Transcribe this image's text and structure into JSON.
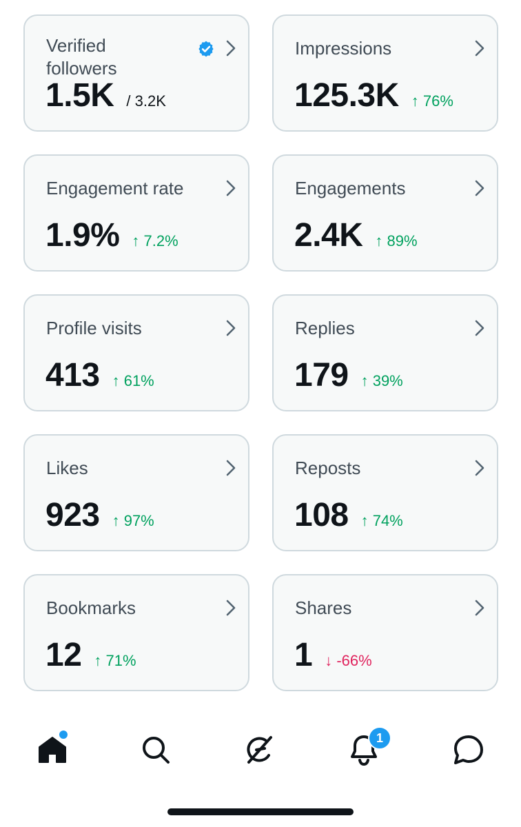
{
  "colors": {
    "card_bg": "#f7f9f9",
    "card_border": "#cfd9de",
    "positive": "#00a15e",
    "negative": "#e0245e",
    "accent": "#1d9bf0",
    "text": "#0f1419",
    "label": "#404b55"
  },
  "cards": [
    {
      "label": "Verified\nfollowers",
      "value": "1.5K",
      "sub": "/ 3.2K",
      "verified_icon": "verified-badge-icon"
    },
    {
      "label": "Impressions",
      "value": "125.3K",
      "change": "↑ 76%",
      "direction": "up"
    },
    {
      "label": "Engagement rate",
      "value": "1.9%",
      "change": "↑ 7.2%",
      "direction": "up"
    },
    {
      "label": "Engagements",
      "value": "2.4K",
      "change": "↑ 89%",
      "direction": "up"
    },
    {
      "label": "Profile visits",
      "value": "413",
      "change": "↑ 61%",
      "direction": "up"
    },
    {
      "label": "Replies",
      "value": "179",
      "change": "↑ 39%",
      "direction": "up"
    },
    {
      "label": "Likes",
      "value": "923",
      "change": "↑ 97%",
      "direction": "up"
    },
    {
      "label": "Reposts",
      "value": "108",
      "change": "↑ 74%",
      "direction": "up"
    },
    {
      "label": "Bookmarks",
      "value": "12",
      "change": "↑ 71%",
      "direction": "up"
    },
    {
      "label": "Shares",
      "value": "1",
      "change": "↓ -66%",
      "direction": "down"
    }
  ],
  "tabbar": {
    "items": [
      {
        "icon": "home-icon",
        "active": true,
        "has_dot": true
      },
      {
        "icon": "search-icon"
      },
      {
        "icon": "grok-icon"
      },
      {
        "icon": "notifications-icon",
        "badge": "1"
      },
      {
        "icon": "messages-icon"
      }
    ]
  }
}
